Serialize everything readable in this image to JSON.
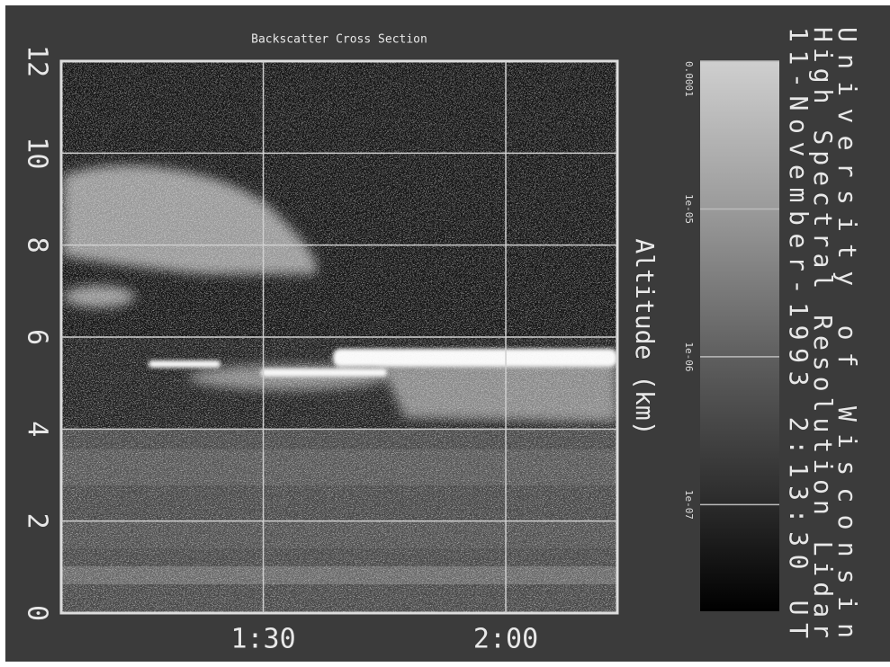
{
  "chart_data": {
    "type": "heatmap",
    "title": [
      "University of Wisconsin",
      "High Spectral Resolution Lidar",
      "11-November-1993  2:13:30 UT"
    ],
    "subtitle": "Backscatter Cross Section",
    "ylabel": "Altitude (km)",
    "xlim": [
      65,
      133.8
    ],
    "xticks": [
      {
        "value": 90,
        "label": "1:30"
      },
      {
        "value": 120,
        "label": "2:00"
      }
    ],
    "ylim": [
      0,
      12
    ],
    "yticks": [
      0,
      2,
      4,
      6,
      8,
      10,
      12
    ],
    "grid": true,
    "colorbar": {
      "scale": "log",
      "lim": [
        1.9e-08,
        0.0001
      ],
      "ticks": [
        0.0001,
        {
          "value": 1e-05,
          "label": "1e-05"
        },
        {
          "value": 1e-06,
          "label": "1e-06"
        },
        {
          "value": 1e-07,
          "label": "1e-07"
        }
      ]
    }
  }
}
